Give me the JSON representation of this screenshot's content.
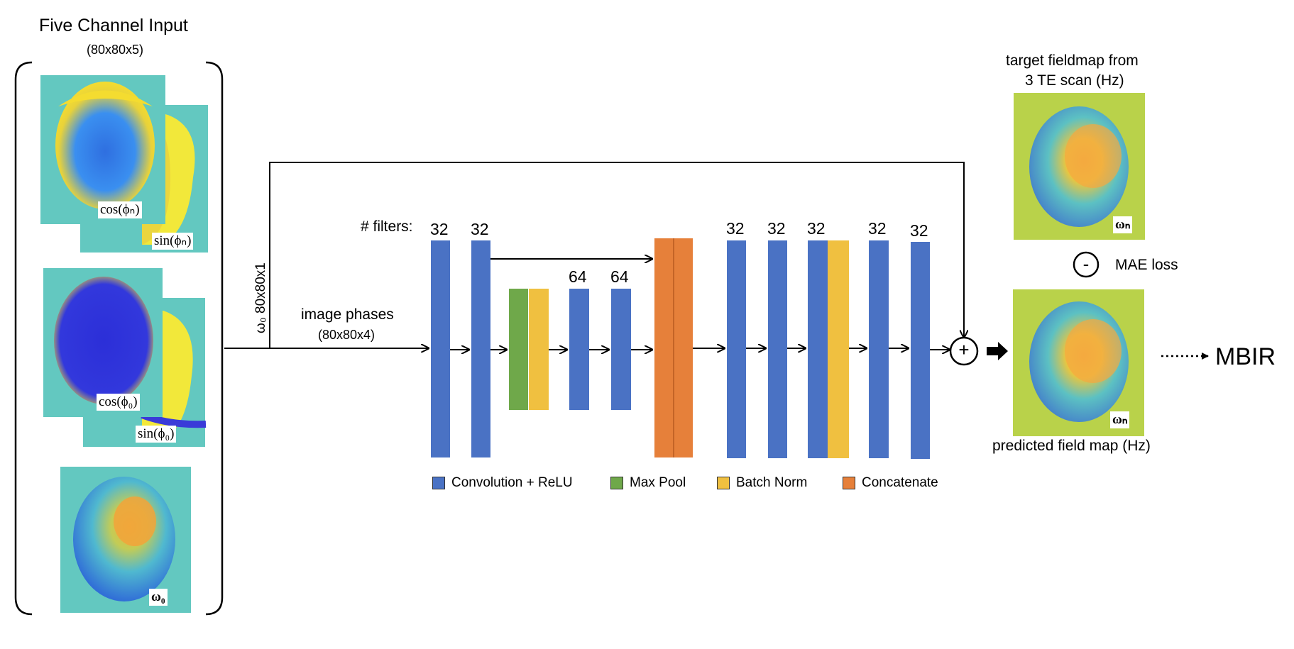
{
  "input": {
    "title": "Five Channel Input",
    "dims": "(80x80x5)",
    "channels": {
      "cos_phi_n": "cos(ϕₙ)",
      "sin_phi_n": "sin(ϕₙ)",
      "cos_phi_0": "cos(ϕ₀)",
      "sin_phi_0": "sin(ϕ₀)",
      "omega_0": "ω₀"
    }
  },
  "flows": {
    "omega_branch": "ω₀  80x80x1",
    "phases_label": "image phases",
    "phases_dims": "(80x80x4)"
  },
  "network": {
    "filters_label": "# filters:",
    "filters": [
      "32",
      "32",
      "64",
      "64",
      "32",
      "32",
      "32",
      "32",
      "32"
    ]
  },
  "legend": [
    {
      "label": "Convolution + ReLU",
      "color": "#4a72c4"
    },
    {
      "label": "Max Pool",
      "color": "#6fa84a"
    },
    {
      "label": "Batch Norm",
      "color": "#f0c040"
    },
    {
      "label": "Concatenate",
      "color": "#e6803a"
    }
  ],
  "output": {
    "target_title_line1": "target fieldmap from",
    "target_title_line2": "3 TE scan (Hz)",
    "omega_n_target": "ωₙ",
    "loss_symbol": "-",
    "loss_label": "MAE loss",
    "omega_n_pred": "ωₙ",
    "predicted_title": "predicted field map (Hz)",
    "plus_symbol": "+",
    "mbir": "MBIR"
  },
  "colors": {
    "conv": "#4a72c4",
    "maxpool": "#6fa84a",
    "batchnorm": "#f0c040",
    "concat": "#e6803a",
    "map_bg": "#63c8c0",
    "field_bg": "#b9d24a"
  }
}
